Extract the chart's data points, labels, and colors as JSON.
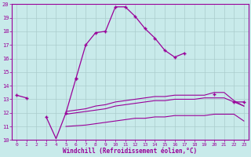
{
  "xlabel": "Windchill (Refroidissement éolien,°C)",
  "hours": [
    0,
    1,
    2,
    3,
    4,
    5,
    6,
    7,
    8,
    9,
    10,
    11,
    12,
    13,
    14,
    15,
    16,
    17,
    18,
    19,
    20,
    21,
    22,
    23
  ],
  "main_line": [
    13.3,
    13.1,
    null,
    null,
    null,
    null,
    14.5,
    17.0,
    17.9,
    18.0,
    19.8,
    19.8,
    19.1,
    18.2,
    17.5,
    16.6,
    16.1,
    16.4,
    null,
    null,
    13.4,
    null,
    12.8,
    12.8
  ],
  "main_line2": [
    null,
    null,
    null,
    11.7,
    null,
    12.0,
    14.5,
    null,
    null,
    null,
    null,
    null,
    null,
    null,
    null,
    null,
    null,
    null,
    null,
    null,
    null,
    null,
    null,
    null
  ],
  "wc_dip": [
    null,
    null,
    null,
    11.7,
    10.1,
    12.0,
    null,
    null,
    null,
    null,
    null,
    null,
    null,
    null,
    null,
    null,
    null,
    null,
    null,
    null,
    null,
    null,
    null,
    null
  ],
  "wc_flat1": [
    null,
    null,
    null,
    null,
    null,
    11.0,
    11.05,
    11.1,
    11.2,
    11.3,
    11.4,
    11.5,
    11.6,
    11.6,
    11.7,
    11.7,
    11.8,
    11.8,
    11.8,
    11.8,
    11.9,
    11.9,
    11.9,
    11.4
  ],
  "wc_flat2": [
    null,
    null,
    null,
    11.8,
    null,
    11.9,
    12.0,
    12.1,
    12.2,
    12.3,
    12.5,
    12.6,
    12.7,
    12.8,
    12.9,
    12.9,
    13.0,
    13.0,
    13.0,
    13.1,
    13.1,
    13.1,
    12.8,
    12.5
  ],
  "wc_flat3": [
    null,
    null,
    null,
    11.9,
    null,
    12.1,
    12.2,
    12.3,
    12.5,
    12.6,
    12.8,
    12.9,
    13.0,
    13.1,
    13.2,
    13.2,
    13.3,
    13.3,
    13.3,
    13.3,
    13.5,
    13.5,
    12.9,
    12.5
  ],
  "bg_color": "#c8eaea",
  "grid_color": "#aacccc",
  "line_color": "#990099",
  "ylim": [
    10,
    20
  ],
  "xlim": [
    0,
    23
  ]
}
